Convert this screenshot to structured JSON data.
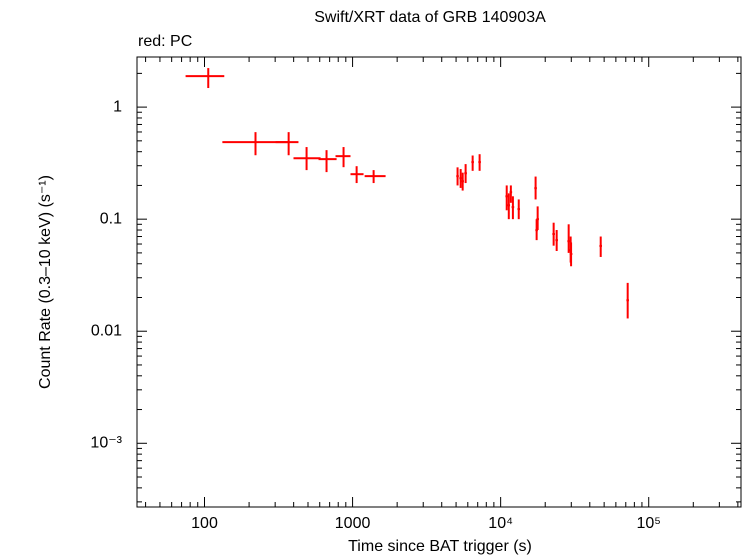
{
  "chart_data": {
    "type": "scatter",
    "title": "Swift/XRT data of GRB 140903A",
    "annotation": "red: PC",
    "x_label": "Time since BAT trigger (s)",
    "y_label": "Count Rate (0.3–10 keV) (s⁻¹)",
    "x_log": true,
    "y_log": true,
    "xlim": [
      35,
      420000
    ],
    "ylim": [
      0.00027,
      2.8
    ],
    "xticks": [
      100,
      1000,
      {
        "value": 10000,
        "label": "10⁴"
      },
      {
        "value": 100000,
        "label": "10⁵"
      }
    ],
    "yticks": [
      {
        "value": 0.001,
        "label": "10⁻³"
      },
      0.01,
      0.1,
      1
    ],
    "series": [
      {
        "name": "PC",
        "color": "#ff0000",
        "x": [
          106,
          221,
          370,
          489,
          667,
          869,
          1065,
          1387,
          5117,
          5370,
          5540,
          5800,
          6470,
          7210,
          10990,
          11350,
          11720,
          12100,
          13250,
          17220,
          17780,
          17500,
          22800,
          23900,
          28800,
          29700,
          29900,
          47400,
          72100
        ],
        "x_low": [
          74.5,
          132,
          302,
          399,
          589,
          767,
          968,
          1206,
          5015,
          5263,
          5429,
          5684,
          6341,
          7066,
          10770,
          11123,
          11486,
          11858,
          12985,
          16876,
          17424,
          17150,
          22344,
          23422,
          28224,
          29106,
          29302,
          46452,
          70658
        ],
        "x_high": [
          136,
          370,
          431,
          608,
          780,
          968,
          1186,
          1671,
          5219,
          5477,
          5651,
          5916,
          6599,
          7354,
          11210,
          11577,
          11954,
          12342,
          13515,
          17564,
          18136,
          17850,
          23256,
          24378,
          29376,
          30294,
          30498,
          48348,
          73542
        ],
        "values": [
          1.89,
          0.487,
          0.487,
          0.35,
          0.343,
          0.365,
          0.252,
          0.242,
          0.242,
          0.232,
          0.218,
          0.257,
          0.323,
          0.323,
          0.16,
          0.133,
          0.174,
          0.128,
          0.123,
          0.189,
          0.1,
          0.0798,
          0.0737,
          0.065,
          0.0636,
          0.0529,
          0.0489,
          0.0577,
          0.0189
        ],
        "y_low": [
          1.48,
          0.372,
          0.372,
          0.274,
          0.263,
          0.291,
          0.21,
          0.21,
          0.2,
          0.19,
          0.18,
          0.21,
          0.27,
          0.27,
          0.12,
          0.1,
          0.14,
          0.1,
          0.1,
          0.15,
          0.08,
          0.065,
          0.058,
          0.052,
          0.05,
          0.041,
          0.038,
          0.046,
          0.013
        ],
        "y_high": [
          2.23,
          0.598,
          0.598,
          0.44,
          0.413,
          0.44,
          0.297,
          0.274,
          0.29,
          0.28,
          0.26,
          0.31,
          0.37,
          0.38,
          0.2,
          0.17,
          0.2,
          0.16,
          0.15,
          0.24,
          0.13,
          0.1,
          0.093,
          0.08,
          0.09,
          0.07,
          0.062,
          0.07,
          0.027
        ]
      }
    ]
  }
}
